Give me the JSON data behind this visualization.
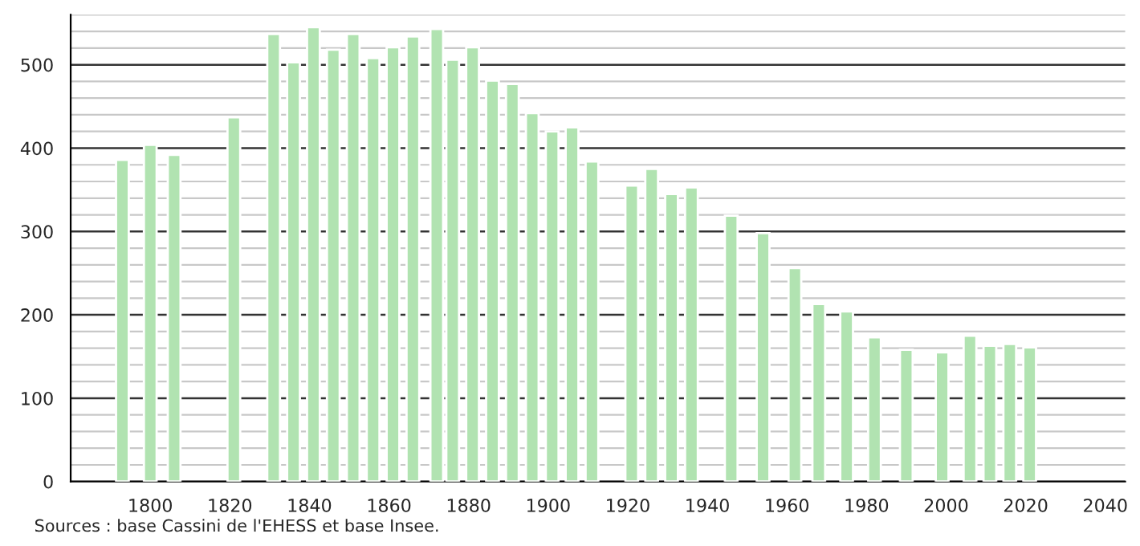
{
  "chart_data": {
    "type": "bar",
    "x": [
      1793,
      1800,
      1806,
      1821,
      1831,
      1836,
      1841,
      1846,
      1851,
      1856,
      1861,
      1866,
      1872,
      1876,
      1881,
      1886,
      1891,
      1896,
      1901,
      1906,
      1911,
      1921,
      1926,
      1931,
      1936,
      1946,
      1954,
      1962,
      1968,
      1975,
      1982,
      1990,
      1999,
      2006,
      2011,
      2016,
      2021
    ],
    "values": [
      386,
      404,
      392,
      437,
      537,
      503,
      545,
      518,
      537,
      508,
      521,
      534,
      543,
      506,
      521,
      481,
      477,
      442,
      420,
      425,
      384,
      355,
      375,
      345,
      353,
      319,
      298,
      256,
      213,
      204,
      173,
      158,
      155,
      175,
      163,
      165,
      161
    ],
    "color": "#b1e3b1",
    "xlim": [
      1780,
      2045
    ],
    "xticks": [
      1800,
      1820,
      1840,
      1860,
      1880,
      1900,
      1920,
      1940,
      1960,
      1980,
      2000,
      2020,
      2040
    ],
    "ylim": [
      0,
      560
    ],
    "yticks": [
      0,
      100,
      200,
      300,
      400,
      500
    ],
    "grid": "y",
    "annotations": [
      "Sources : base Cassini de l'EHESS et base Insee."
    ]
  }
}
